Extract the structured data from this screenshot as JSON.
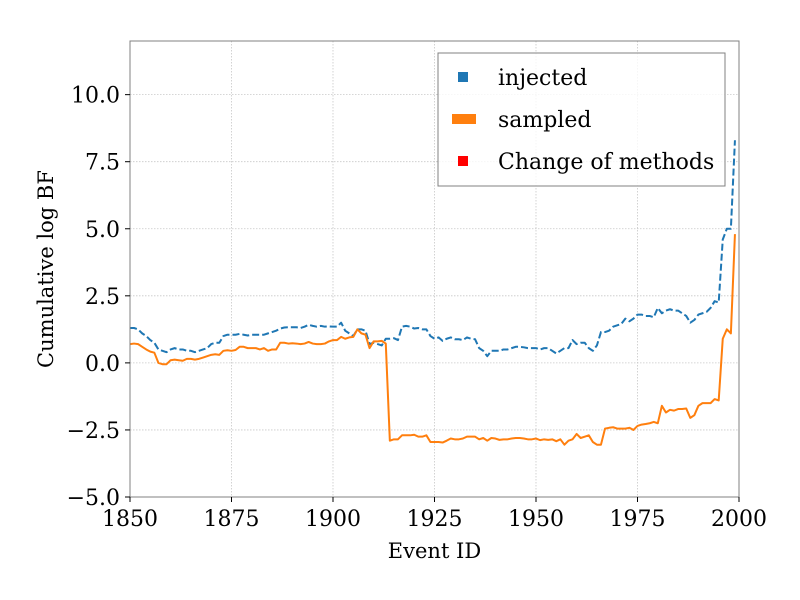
{
  "chart_data": {
    "type": "line",
    "xlabel": "Event ID",
    "ylabel": "Cumulative log BF",
    "xlim": [
      1850,
      2000
    ],
    "ylim": [
      -5.0,
      12.0
    ],
    "x_ticks": [
      1850,
      1875,
      1900,
      1925,
      1950,
      1975,
      2000
    ],
    "y_ticks": [
      -5.0,
      -2.5,
      0.0,
      2.5,
      5.0,
      7.5,
      10.0
    ],
    "y_tick_labels": [
      "−5.0",
      "−2.5",
      "0.0",
      "2.5",
      "5.0",
      "7.5",
      "10.0"
    ],
    "grid": true,
    "legend_position": "top-right",
    "legend": [
      {
        "label": "injected",
        "color": "#1f77b4",
        "marker": "small-square"
      },
      {
        "label": "sampled",
        "color": "#ff7f0e",
        "marker": "wide-bar"
      },
      {
        "label": "Change of methods",
        "color": "#ff0000",
        "marker": "small-square"
      }
    ],
    "series": [
      {
        "name": "injected",
        "color": "#1f77b4",
        "style": "dashed",
        "points": [
          [
            1850,
            1.3
          ],
          [
            1851,
            1.3
          ],
          [
            1852,
            1.25
          ],
          [
            1853,
            1.1
          ],
          [
            1854,
            1.0
          ],
          [
            1855,
            0.85
          ],
          [
            1856,
            0.75
          ],
          [
            1857,
            0.5
          ],
          [
            1858,
            0.45
          ],
          [
            1859,
            0.4
          ],
          [
            1860,
            0.5
          ],
          [
            1861,
            0.55
          ],
          [
            1862,
            0.5
          ],
          [
            1863,
            0.5
          ],
          [
            1864,
            0.45
          ],
          [
            1865,
            0.45
          ],
          [
            1866,
            0.4
          ],
          [
            1867,
            0.45
          ],
          [
            1868,
            0.5
          ],
          [
            1869,
            0.55
          ],
          [
            1870,
            0.7
          ],
          [
            1871,
            0.75
          ],
          [
            1872,
            0.75
          ],
          [
            1873,
            1.0
          ],
          [
            1874,
            1.05
          ],
          [
            1875,
            1.05
          ],
          [
            1876,
            1.05
          ],
          [
            1877,
            1.08
          ],
          [
            1878,
            1.05
          ],
          [
            1879,
            1.02
          ],
          [
            1880,
            1.05
          ],
          [
            1881,
            1.05
          ],
          [
            1882,
            1.05
          ],
          [
            1883,
            1.05
          ],
          [
            1884,
            1.1
          ],
          [
            1885,
            1.15
          ],
          [
            1886,
            1.2
          ],
          [
            1887,
            1.28
          ],
          [
            1888,
            1.32
          ],
          [
            1889,
            1.33
          ],
          [
            1890,
            1.33
          ],
          [
            1891,
            1.33
          ],
          [
            1892,
            1.3
          ],
          [
            1893,
            1.35
          ],
          [
            1894,
            1.42
          ],
          [
            1895,
            1.38
          ],
          [
            1896,
            1.35
          ],
          [
            1897,
            1.38
          ],
          [
            1898,
            1.35
          ],
          [
            1899,
            1.36
          ],
          [
            1900,
            1.35
          ],
          [
            1901,
            1.35
          ],
          [
            1902,
            1.5
          ],
          [
            1903,
            1.2
          ],
          [
            1904,
            1.1
          ],
          [
            1905,
            1.0
          ],
          [
            1906,
            1.25
          ],
          [
            1907,
            1.25
          ],
          [
            1908,
            1.2
          ],
          [
            1909,
            0.7
          ],
          [
            1910,
            0.75
          ],
          [
            1911,
            0.7
          ],
          [
            1912,
            0.65
          ],
          [
            1913,
            0.9
          ],
          [
            1914,
            0.9
          ],
          [
            1915,
            0.92
          ],
          [
            1916,
            0.85
          ],
          [
            1917,
            1.35
          ],
          [
            1918,
            1.38
          ],
          [
            1919,
            1.35
          ],
          [
            1920,
            1.28
          ],
          [
            1921,
            1.3
          ],
          [
            1922,
            1.25
          ],
          [
            1923,
            1.25
          ],
          [
            1924,
            1.0
          ],
          [
            1925,
            0.9
          ],
          [
            1926,
            0.95
          ],
          [
            1927,
            0.82
          ],
          [
            1928,
            0.9
          ],
          [
            1929,
            0.95
          ],
          [
            1930,
            0.88
          ],
          [
            1931,
            0.88
          ],
          [
            1932,
            0.85
          ],
          [
            1933,
            0.95
          ],
          [
            1934,
            0.9
          ],
          [
            1935,
            0.88
          ],
          [
            1936,
            0.55
          ],
          [
            1937,
            0.45
          ],
          [
            1938,
            0.25
          ],
          [
            1939,
            0.45
          ],
          [
            1940,
            0.45
          ],
          [
            1941,
            0.45
          ],
          [
            1942,
            0.5
          ],
          [
            1943,
            0.5
          ],
          [
            1944,
            0.55
          ],
          [
            1945,
            0.6
          ],
          [
            1946,
            0.6
          ],
          [
            1947,
            0.58
          ],
          [
            1948,
            0.55
          ],
          [
            1949,
            0.55
          ],
          [
            1950,
            0.55
          ],
          [
            1951,
            0.5
          ],
          [
            1952,
            0.55
          ],
          [
            1953,
            0.55
          ],
          [
            1954,
            0.45
          ],
          [
            1955,
            0.35
          ],
          [
            1956,
            0.45
          ],
          [
            1957,
            0.55
          ],
          [
            1958,
            0.55
          ],
          [
            1959,
            0.85
          ],
          [
            1960,
            0.7
          ],
          [
            1961,
            0.75
          ],
          [
            1962,
            0.75
          ],
          [
            1963,
            0.55
          ],
          [
            1964,
            0.45
          ],
          [
            1965,
            0.65
          ],
          [
            1966,
            1.15
          ],
          [
            1967,
            1.15
          ],
          [
            1968,
            1.2
          ],
          [
            1969,
            1.35
          ],
          [
            1970,
            1.4
          ],
          [
            1971,
            1.45
          ],
          [
            1972,
            1.65
          ],
          [
            1973,
            1.55
          ],
          [
            1974,
            1.65
          ],
          [
            1975,
            1.8
          ],
          [
            1976,
            1.8
          ],
          [
            1977,
            1.75
          ],
          [
            1978,
            1.75
          ],
          [
            1979,
            1.7
          ],
          [
            1980,
            2.05
          ],
          [
            1981,
            1.85
          ],
          [
            1982,
            1.95
          ],
          [
            1983,
            2.0
          ],
          [
            1984,
            1.95
          ],
          [
            1985,
            1.95
          ],
          [
            1986,
            1.85
          ],
          [
            1987,
            1.75
          ],
          [
            1988,
            1.5
          ],
          [
            1989,
            1.6
          ],
          [
            1990,
            1.8
          ],
          [
            1991,
            1.85
          ],
          [
            1992,
            1.9
          ],
          [
            1993,
            2.05
          ],
          [
            1994,
            2.3
          ],
          [
            1995,
            2.25
          ],
          [
            1996,
            4.6
          ],
          [
            1997,
            5.0
          ],
          [
            1998,
            5.0
          ],
          [
            1999,
            8.3
          ]
        ]
      },
      {
        "name": "sampled",
        "color": "#ff7f0e",
        "style": "solid",
        "points": [
          [
            1850,
            0.7
          ],
          [
            1851,
            0.72
          ],
          [
            1852,
            0.7
          ],
          [
            1853,
            0.6
          ],
          [
            1854,
            0.5
          ],
          [
            1855,
            0.42
          ],
          [
            1856,
            0.38
          ],
          [
            1857,
            0.0
          ],
          [
            1858,
            -0.05
          ],
          [
            1859,
            -0.05
          ],
          [
            1860,
            0.1
          ],
          [
            1861,
            0.12
          ],
          [
            1862,
            0.1
          ],
          [
            1863,
            0.08
          ],
          [
            1864,
            0.15
          ],
          [
            1865,
            0.15
          ],
          [
            1866,
            0.12
          ],
          [
            1867,
            0.15
          ],
          [
            1868,
            0.2
          ],
          [
            1869,
            0.25
          ],
          [
            1870,
            0.3
          ],
          [
            1871,
            0.32
          ],
          [
            1872,
            0.3
          ],
          [
            1873,
            0.45
          ],
          [
            1874,
            0.47
          ],
          [
            1875,
            0.45
          ],
          [
            1876,
            0.48
          ],
          [
            1877,
            0.6
          ],
          [
            1878,
            0.6
          ],
          [
            1879,
            0.55
          ],
          [
            1880,
            0.55
          ],
          [
            1881,
            0.55
          ],
          [
            1882,
            0.5
          ],
          [
            1883,
            0.55
          ],
          [
            1884,
            0.45
          ],
          [
            1885,
            0.5
          ],
          [
            1886,
            0.5
          ],
          [
            1887,
            0.75
          ],
          [
            1888,
            0.75
          ],
          [
            1889,
            0.72
          ],
          [
            1890,
            0.73
          ],
          [
            1891,
            0.72
          ],
          [
            1892,
            0.7
          ],
          [
            1893,
            0.72
          ],
          [
            1894,
            0.78
          ],
          [
            1895,
            0.72
          ],
          [
            1896,
            0.7
          ],
          [
            1897,
            0.7
          ],
          [
            1898,
            0.72
          ],
          [
            1899,
            0.8
          ],
          [
            1900,
            0.85
          ],
          [
            1901,
            0.85
          ],
          [
            1902,
            0.97
          ],
          [
            1903,
            0.9
          ],
          [
            1904,
            0.95
          ],
          [
            1905,
            0.97
          ],
          [
            1906,
            1.25
          ],
          [
            1907,
            1.1
          ],
          [
            1908,
            1.05
          ],
          [
            1909,
            0.55
          ],
          [
            1910,
            0.8
          ],
          [
            1911,
            0.8
          ],
          [
            1912,
            0.82
          ],
          [
            1913,
            0.72
          ],
          [
            1914,
            -2.9
          ],
          [
            1915,
            -2.85
          ],
          [
            1916,
            -2.85
          ],
          [
            1917,
            -2.7
          ],
          [
            1918,
            -2.7
          ],
          [
            1919,
            -2.7
          ],
          [
            1920,
            -2.68
          ],
          [
            1921,
            -2.75
          ],
          [
            1922,
            -2.75
          ],
          [
            1923,
            -2.7
          ],
          [
            1924,
            -2.95
          ],
          [
            1925,
            -2.95
          ],
          [
            1926,
            -2.95
          ],
          [
            1927,
            -2.97
          ],
          [
            1928,
            -2.9
          ],
          [
            1929,
            -2.82
          ],
          [
            1930,
            -2.85
          ],
          [
            1931,
            -2.85
          ],
          [
            1932,
            -2.82
          ],
          [
            1933,
            -2.75
          ],
          [
            1934,
            -2.75
          ],
          [
            1935,
            -2.75
          ],
          [
            1936,
            -2.85
          ],
          [
            1937,
            -2.8
          ],
          [
            1938,
            -2.9
          ],
          [
            1939,
            -2.8
          ],
          [
            1940,
            -2.82
          ],
          [
            1941,
            -2.87
          ],
          [
            1942,
            -2.85
          ],
          [
            1943,
            -2.85
          ],
          [
            1944,
            -2.82
          ],
          [
            1945,
            -2.8
          ],
          [
            1946,
            -2.8
          ],
          [
            1947,
            -2.82
          ],
          [
            1948,
            -2.85
          ],
          [
            1949,
            -2.85
          ],
          [
            1950,
            -2.82
          ],
          [
            1951,
            -2.88
          ],
          [
            1952,
            -2.85
          ],
          [
            1953,
            -2.87
          ],
          [
            1954,
            -2.85
          ],
          [
            1955,
            -2.92
          ],
          [
            1956,
            -2.85
          ],
          [
            1957,
            -3.05
          ],
          [
            1958,
            -2.9
          ],
          [
            1959,
            -2.85
          ],
          [
            1960,
            -2.65
          ],
          [
            1961,
            -2.8
          ],
          [
            1962,
            -2.75
          ],
          [
            1963,
            -2.7
          ],
          [
            1964,
            -2.95
          ],
          [
            1965,
            -3.05
          ],
          [
            1966,
            -3.05
          ],
          [
            1967,
            -2.45
          ],
          [
            1968,
            -2.42
          ],
          [
            1969,
            -2.4
          ],
          [
            1970,
            -2.45
          ],
          [
            1971,
            -2.45
          ],
          [
            1972,
            -2.45
          ],
          [
            1973,
            -2.42
          ],
          [
            1974,
            -2.5
          ],
          [
            1975,
            -2.35
          ],
          [
            1976,
            -2.3
          ],
          [
            1977,
            -2.28
          ],
          [
            1978,
            -2.25
          ],
          [
            1979,
            -2.2
          ],
          [
            1980,
            -2.25
          ],
          [
            1981,
            -1.6
          ],
          [
            1982,
            -1.85
          ],
          [
            1983,
            -1.75
          ],
          [
            1984,
            -1.78
          ],
          [
            1985,
            -1.72
          ],
          [
            1986,
            -1.72
          ],
          [
            1987,
            -1.7
          ],
          [
            1988,
            -2.05
          ],
          [
            1989,
            -1.95
          ],
          [
            1990,
            -1.6
          ],
          [
            1991,
            -1.5
          ],
          [
            1992,
            -1.5
          ],
          [
            1993,
            -1.5
          ],
          [
            1994,
            -1.35
          ],
          [
            1995,
            -1.4
          ],
          [
            1996,
            0.9
          ],
          [
            1997,
            1.25
          ],
          [
            1998,
            1.1
          ],
          [
            1999,
            4.8
          ]
        ]
      }
    ]
  }
}
